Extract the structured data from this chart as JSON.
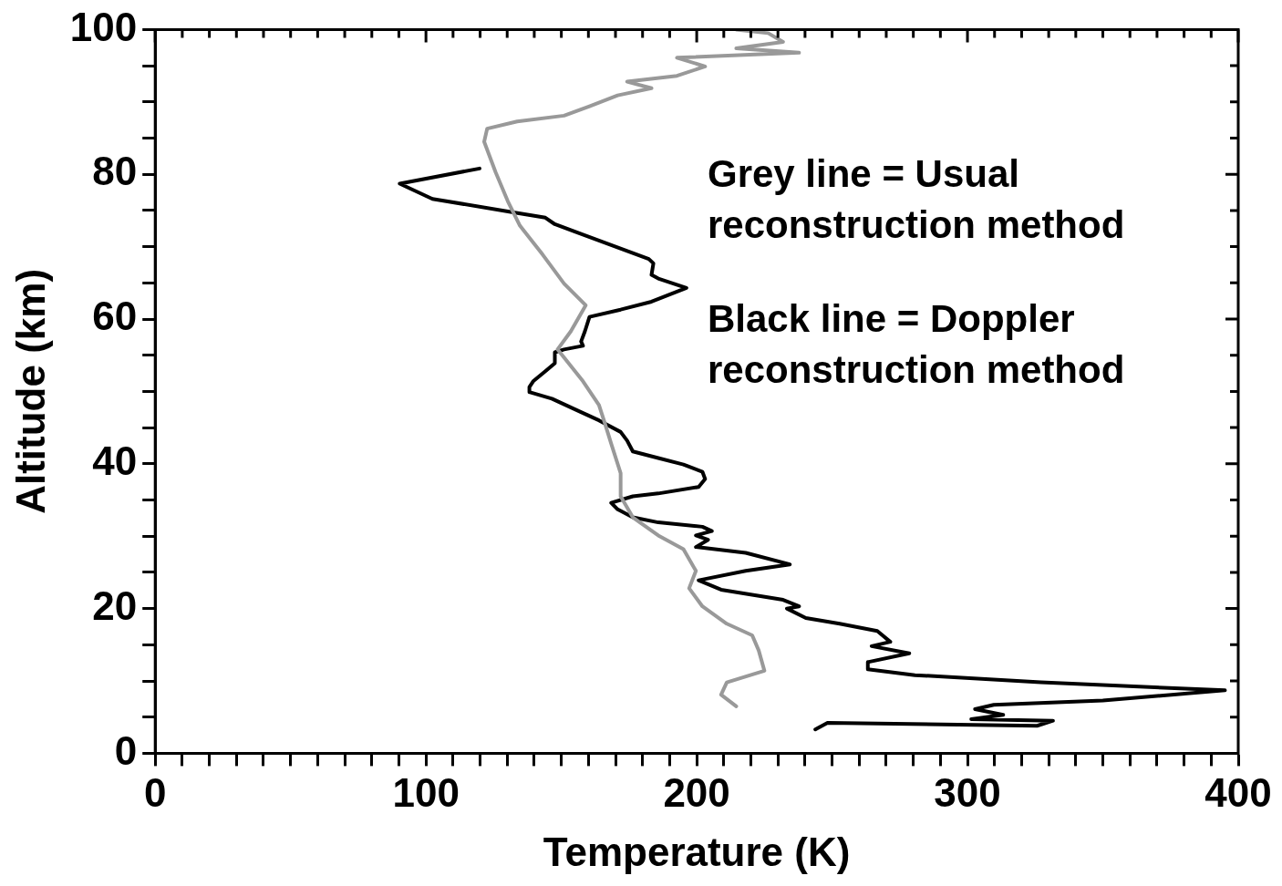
{
  "chart_data": {
    "type": "line",
    "xlabel": "Temperature (K)",
    "ylabel": "Altitude (km)",
    "xlim": [
      0,
      400
    ],
    "ylim": [
      0,
      100
    ],
    "xticks": [
      0,
      {
        "value": 10,
        "label": null
      },
      {
        "value": 20,
        "label": null
      },
      {
        "value": 30,
        "label": null
      },
      {
        "value": 40,
        "label": null
      },
      {
        "value": 50,
        "label": null
      },
      {
        "value": 60,
        "label": null
      },
      {
        "value": 70,
        "label": null
      },
      {
        "value": 80,
        "label": null
      },
      {
        "value": 90,
        "label": null
      },
      100,
      {
        "value": 110,
        "label": null
      },
      {
        "value": 120,
        "label": null
      },
      {
        "value": 130,
        "label": null
      },
      {
        "value": 140,
        "label": null
      },
      {
        "value": 150,
        "label": null
      },
      {
        "value": 160,
        "label": null
      },
      {
        "value": 170,
        "label": null
      },
      {
        "value": 180,
        "label": null
      },
      {
        "value": 190,
        "label": null
      },
      200,
      {
        "value": 210,
        "label": null
      },
      {
        "value": 220,
        "label": null
      },
      {
        "value": 230,
        "label": null
      },
      {
        "value": 240,
        "label": null
      },
      {
        "value": 250,
        "label": null
      },
      {
        "value": 260,
        "label": null
      },
      {
        "value": 270,
        "label": null
      },
      {
        "value": 280,
        "label": null
      },
      {
        "value": 290,
        "label": null
      },
      300,
      {
        "value": 310,
        "label": null
      },
      {
        "value": 320,
        "label": null
      },
      {
        "value": 330,
        "label": null
      },
      {
        "value": 340,
        "label": null
      },
      {
        "value": 350,
        "label": null
      },
      {
        "value": 360,
        "label": null
      },
      {
        "value": 370,
        "label": null
      },
      {
        "value": 380,
        "label": null
      },
      {
        "value": 390,
        "label": null
      },
      400
    ],
    "yticks": [
      0,
      {
        "value": 5,
        "label": null
      },
      {
        "value": 10,
        "label": null
      },
      {
        "value": 15,
        "label": null
      },
      20,
      {
        "value": 25,
        "label": null
      },
      {
        "value": 30,
        "label": null
      },
      {
        "value": 35,
        "label": null
      },
      40,
      {
        "value": 45,
        "label": null
      },
      {
        "value": 50,
        "label": null
      },
      {
        "value": 55,
        "label": null
      },
      60,
      {
        "value": 65,
        "label": null
      },
      {
        "value": 70,
        "label": null
      },
      {
        "value": 75,
        "label": null
      },
      80,
      {
        "value": 85,
        "label": null
      },
      {
        "value": 90,
        "label": null
      },
      {
        "value": 95,
        "label": null
      },
      100
    ],
    "grid": false,
    "legend": false,
    "marker": "none",
    "line_style": "solid",
    "annotations": [
      "Grey line = Usual reconstruction method",
      "Black line = Doppler reconstruction method"
    ],
    "series": [
      {
        "color": "#999999",
        "x": [
          214.6,
          209.0,
          211.1,
          225.0,
          222.9,
          220.5,
          211.1,
          202.1,
          197.2,
          199.7,
          195.1,
          185.8,
          176.4,
          171.9,
          171.9,
          168.4,
          166.0,
          163.9,
          158.0,
          148.6,
          153.5,
          159.0,
          151.0,
          143.1,
          134.7,
          130.2,
          125.7,
          121.5,
          122.6,
          133.7,
          151.0,
          160.4,
          170.8,
          183.3,
          174.3,
          192.7,
          203.1,
          192.7,
          237.8,
          214.6,
          231.9,
          226.4,
          214.6
        ],
        "values": [
          6.5,
          8.1,
          9.8,
          11.4,
          14.2,
          16.3,
          17.9,
          20.3,
          22.8,
          25.2,
          28.2,
          30.1,
          32.6,
          35.5,
          38.7,
          42.8,
          45.7,
          48.1,
          51.4,
          55.8,
          58.3,
          61.9,
          64.9,
          68.9,
          72.9,
          76.3,
          80.3,
          84.5,
          86.3,
          87.3,
          88.1,
          89.4,
          90.9,
          91.9,
          92.8,
          93.6,
          94.9,
          96.1,
          96.8,
          97.4,
          98.3,
          99.5,
          100
        ]
      },
      {
        "color": "#000000",
        "x": [
          119.8,
          90.3,
          102.4,
          131.3,
          144.1,
          147.6,
          182.3,
          184.0,
          183.3,
          185.8,
          196.2,
          183.3,
          171.9,
          160.4,
          158.7,
          157.3,
          158.0,
          151.0,
          147.6,
          147.6,
          144.1,
          139.6,
          138.2,
          138.2,
          146.5,
          156.9,
          163.9,
          171.9,
          174.3,
          176.4,
          185.8,
          195.1,
          202.1,
          203.1,
          200.7,
          185.8,
          176.4,
          168.4,
          170.8,
          176.4,
          185.8,
          202.1,
          205.6,
          199.7,
          204.2,
          199.7,
          218.1,
          234.4,
          218.1,
          200.7,
          209.0,
          231.9,
          237.8,
          233.3,
          240.3,
          252.8,
          266.7,
          271.5,
          264.6,
          278.5,
          263.2,
          263.2,
          280.6,
          327.1,
          395.1,
          350.0,
          309.7,
          302.8,
          313.2,
          301.4,
          331.6,
          325.7,
          248.3,
          243.8
        ],
        "values": [
          80.8,
          78.7,
          76.6,
          74.8,
          74.0,
          73.1,
          68.3,
          67.7,
          66.1,
          65.6,
          64.3,
          62.4,
          61.3,
          60.3,
          58.3,
          56.9,
          56.3,
          55.8,
          55.4,
          53.9,
          52.8,
          51.4,
          50.6,
          49.9,
          49.0,
          47.2,
          46.0,
          44.4,
          43.2,
          41.7,
          40.8,
          39.9,
          38.9,
          37.9,
          36.8,
          35.9,
          35.5,
          34.6,
          33.7,
          32.6,
          31.9,
          31.3,
          30.7,
          30.1,
          29.5,
          28.5,
          27.7,
          26.1,
          25.2,
          23.9,
          22.6,
          21.2,
          20.3,
          20.0,
          18.7,
          17.9,
          16.9,
          15.4,
          14.8,
          13.8,
          12.6,
          11.6,
          10.8,
          9.8,
          8.7,
          7.3,
          6.7,
          6.1,
          5.3,
          4.7,
          4.5,
          3.8,
          4.2,
          3.3
        ]
      }
    ]
  }
}
